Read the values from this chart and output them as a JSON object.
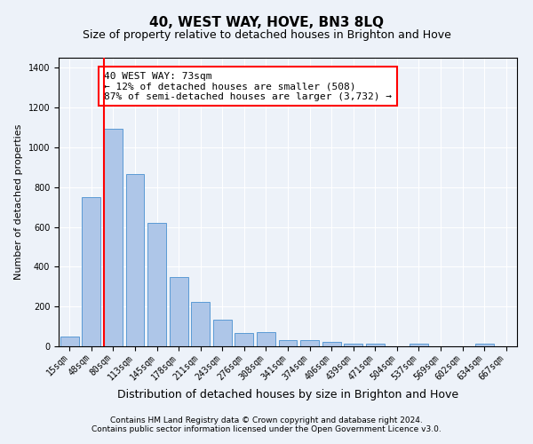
{
  "title": "40, WEST WAY, HOVE, BN3 8LQ",
  "subtitle": "Size of property relative to detached houses in Brighton and Hove",
  "xlabel": "Distribution of detached houses by size in Brighton and Hove",
  "ylabel": "Number of detached properties",
  "categories": [
    "15sqm",
    "48sqm",
    "80sqm",
    "113sqm",
    "145sqm",
    "178sqm",
    "211sqm",
    "243sqm",
    "276sqm",
    "308sqm",
    "341sqm",
    "374sqm",
    "406sqm",
    "439sqm",
    "471sqm",
    "504sqm",
    "537sqm",
    "569sqm",
    "602sqm",
    "634sqm",
    "667sqm"
  ],
  "values": [
    50,
    750,
    1095,
    865,
    620,
    350,
    222,
    135,
    65,
    70,
    30,
    30,
    22,
    15,
    15,
    0,
    12,
    0,
    0,
    12,
    0
  ],
  "bar_color": "#aec6e8",
  "bar_edge_color": "#5b9bd5",
  "vline_color": "red",
  "vline_x_index": 1.575,
  "annotation_text": "40 WEST WAY: 73sqm\n← 12% of detached houses are smaller (508)\n87% of semi-detached houses are larger (3,732) →",
  "annotation_box_color": "white",
  "annotation_box_edge_color": "red",
  "ylim": [
    0,
    1450
  ],
  "yticks": [
    0,
    200,
    400,
    600,
    800,
    1000,
    1200,
    1400
  ],
  "footer_line1": "Contains HM Land Registry data © Crown copyright and database right 2024.",
  "footer_line2": "Contains public sector information licensed under the Open Government Licence v3.0.",
  "bg_color": "#edf2f9",
  "plot_bg_color": "#edf2f9",
  "title_fontsize": 11,
  "subtitle_fontsize": 9,
  "xlabel_fontsize": 9,
  "ylabel_fontsize": 8,
  "tick_fontsize": 7,
  "footer_fontsize": 6.5,
  "annotation_fontsize": 8
}
